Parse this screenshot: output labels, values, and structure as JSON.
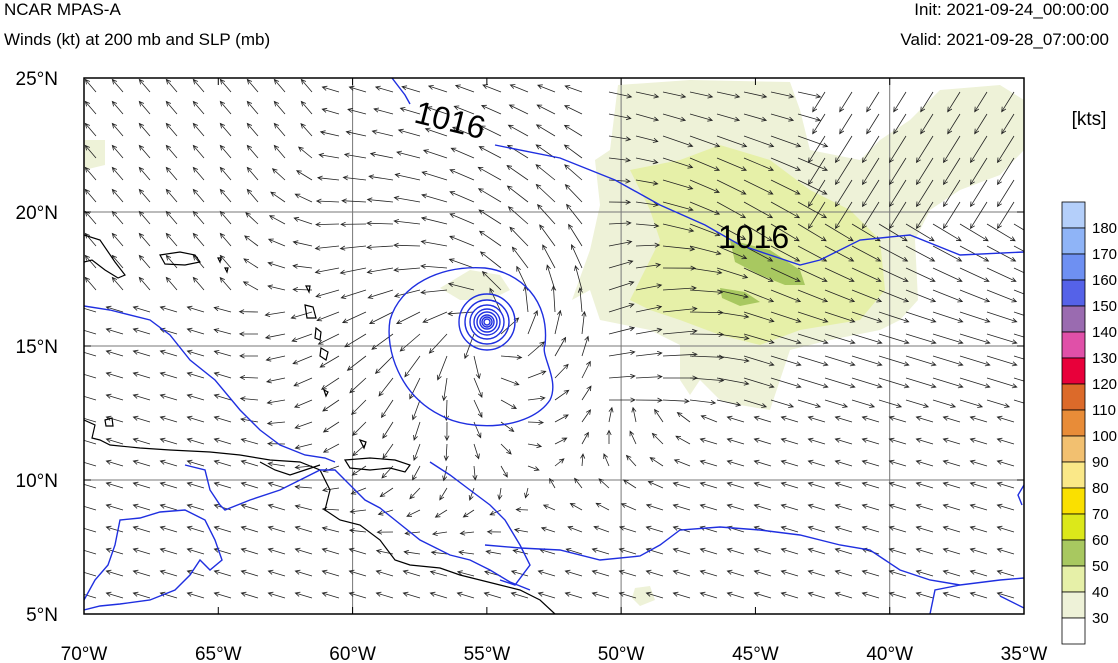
{
  "header": {
    "title": "NCAR MPAS-A",
    "subtitle": "Winds (kt) at 200 mb and SLP (mb)",
    "init": "Init: 2021-09-24_00:00:00",
    "valid": "Valid: 2021-09-28_07:00:00"
  },
  "map": {
    "lon_range": [
      -70,
      -35
    ],
    "lat_range": [
      5,
      25
    ],
    "x_ticks": [
      "70°W",
      "65°W",
      "60°W",
      "55°W",
      "50°W",
      "45°W",
      "40°W",
      "35°W"
    ],
    "y_ticks": [
      "25°N",
      "20°N",
      "15°N",
      "10°N",
      "5°N"
    ],
    "grid": true,
    "contour_labels": [
      "1016",
      "1016"
    ],
    "storm_center": {
      "lon": -55.0,
      "lat": 15.8
    },
    "colors": {
      "coast": "#000000",
      "slp_contour": "#1f2fe0",
      "wind_arrow": "#222222"
    }
  },
  "colorbar": {
    "units": "[kts]",
    "levels": [
      "180",
      "170",
      "160",
      "150",
      "140",
      "130",
      "120",
      "110",
      "100",
      "90",
      "80",
      "70",
      "60",
      "50",
      "40",
      "30"
    ],
    "colors": [
      "#b4cffa",
      "#8fb4f7",
      "#6e90f2",
      "#5562e8",
      "#9a6bb0",
      "#e050a8",
      "#e8003a",
      "#dc6a2a",
      "#e88c38",
      "#f2c070",
      "#fae888",
      "#fae000",
      "#dce81a",
      "#a8c860",
      "#e6f0a8",
      "#eef2d8",
      "#ffffff"
    ]
  }
}
